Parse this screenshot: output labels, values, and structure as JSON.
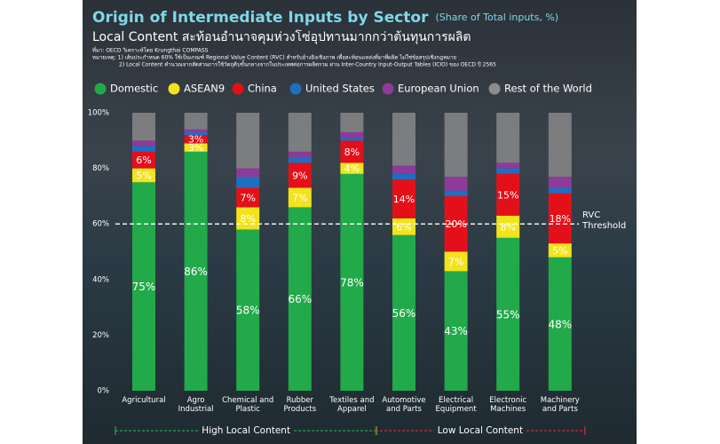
{
  "header": {
    "title": "Origin of Intermediate Inputs by Sector",
    "subtitle": "(Share of Total inputs, %)",
    "headline": "Local Content สะท้อนอำนาจคุมห่วงโซ่อุปทานมากกว่าต้นทุนการผลิต",
    "source": "ที่มา: OECD วิเคราะห์โดย Krungthai COMPASS",
    "notes": [
      "หมายเหตุ: 1) เส้นประกำหนด 60% ใช้เป็นเกณฑ์ Regional Value Content (RVC) สำหรับอ้างอิงเชิงภาพ เพื่อสะท้อนแหล่งที่มาที่ผลิต ไม่ใช่ข้อสรุปเชิงกฎหมาย",
      "2) Local Content คำนวณจากสัดส่วนการใช้วัตถุดิบขั้นกลางจากในประเทศต่อการผลิตรวม ผ่าน Inter-Country Input-Output Tables (ICIO) ของ OECD ปี 2565"
    ]
  },
  "chart_data": {
    "type": "stacked-bar",
    "categories": [
      "Agricultural",
      "Agro Industrial",
      "Chemical and Plastic",
      "Rubber Products",
      "Textiles and Apparel",
      "Automotive and Parts",
      "Electrical Equipment",
      "Electronic Machines",
      "Machinery and Parts"
    ],
    "series": [
      {
        "name": "Domestic",
        "color": "#22a94a",
        "values": [
          75,
          86,
          58,
          66,
          78,
          56,
          43,
          55,
          48
        ],
        "value_labels": [
          "75%",
          "86%",
          "58%",
          "66%",
          "78%",
          "56%",
          "43%",
          "55%",
          "48%"
        ]
      },
      {
        "name": "ASEAN9",
        "color": "#f2e31c",
        "values": [
          5,
          3,
          8,
          7,
          4,
          6,
          7,
          8,
          5
        ],
        "value_labels": [
          "5%",
          "3%",
          "8%",
          "7%",
          "4%",
          "6%",
          "7%",
          "8%",
          "5%"
        ]
      },
      {
        "name": "China",
        "color": "#e3101a",
        "values": [
          6,
          3,
          7,
          9,
          8,
          14,
          20,
          15,
          18
        ],
        "value_labels": [
          "6%",
          "3%",
          "7%",
          "9%",
          "8%",
          "14%",
          "20%",
          "15%",
          "18%"
        ]
      },
      {
        "name": "United States",
        "color": "#1f6fc0",
        "values": [
          2,
          1,
          4,
          2,
          1,
          2,
          2,
          2,
          2
        ]
      },
      {
        "name": "European Union",
        "color": "#8e3a9a",
        "values": [
          2,
          1,
          3,
          2,
          2,
          3,
          5,
          2,
          4
        ]
      },
      {
        "name": "Rest of the World",
        "color": "#8c8c8c",
        "values": [
          10,
          6,
          20,
          14,
          7,
          19,
          23,
          18,
          23
        ]
      }
    ],
    "ylim": [
      0,
      100
    ],
    "yticks": [
      {
        "value": 0,
        "label": "0%"
      },
      {
        "value": 20,
        "label": "20%"
      },
      {
        "value": 40,
        "label": "40%"
      },
      {
        "value": 60,
        "label": "60%"
      },
      {
        "value": 80,
        "label": "80%"
      },
      {
        "value": 100,
        "label": "100%"
      }
    ],
    "grid": false,
    "threshold": {
      "value": 60,
      "label": "RVC Threshold"
    },
    "groups": [
      {
        "label": "High Local Content",
        "color": "#22c04a"
      },
      {
        "label": "Low Local Content",
        "color": "#e8323a"
      }
    ]
  }
}
